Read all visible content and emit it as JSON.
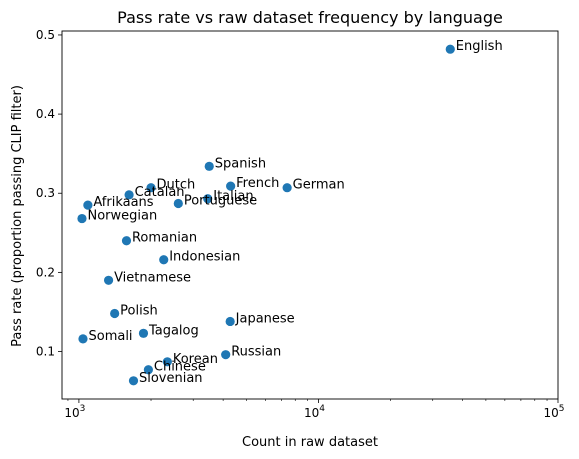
{
  "chart_data": {
    "type": "scatter",
    "title": "Pass rate vs raw dataset frequency by language",
    "xlabel": "Count in raw dataset",
    "ylabel": "Pass rate (proportion passing CLIP filter)",
    "xscale": "log",
    "xlim": [
      850,
      100000
    ],
    "ylim": [
      0.04,
      0.505
    ],
    "grid": false,
    "legend": "none",
    "point_color": "#1f77b4",
    "x_ticks": [
      {
        "value": 1000,
        "base": "10",
        "exp": "3"
      },
      {
        "value": 10000,
        "base": "10",
        "exp": "4"
      },
      {
        "value": 100000,
        "base": "10",
        "exp": "5"
      }
    ],
    "y_ticks": [
      {
        "value": 0.1,
        "label": "0.1"
      },
      {
        "value": 0.2,
        "label": "0.2"
      },
      {
        "value": 0.3,
        "label": "0.3"
      },
      {
        "value": 0.4,
        "label": "0.4"
      },
      {
        "value": 0.5,
        "label": "0.5"
      }
    ],
    "points": [
      {
        "label": "English",
        "x": 35500,
        "y": 0.482
      },
      {
        "label": "Spanish",
        "x": 3500,
        "y": 0.334
      },
      {
        "label": "French",
        "x": 4300,
        "y": 0.309
      },
      {
        "label": "German",
        "x": 7400,
        "y": 0.307
      },
      {
        "label": "Dutch",
        "x": 2000,
        "y": 0.307
      },
      {
        "label": "Catalan",
        "x": 1620,
        "y": 0.298
      },
      {
        "label": "Italian",
        "x": 3450,
        "y": 0.293
      },
      {
        "label": "Portuguese",
        "x": 2600,
        "y": 0.287
      },
      {
        "label": "Afrikaans",
        "x": 1090,
        "y": 0.285
      },
      {
        "label": "Norwegian",
        "x": 1030,
        "y": 0.268
      },
      {
        "label": "Romanian",
        "x": 1580,
        "y": 0.24
      },
      {
        "label": "Indonesian",
        "x": 2260,
        "y": 0.216
      },
      {
        "label": "Vietnamese",
        "x": 1330,
        "y": 0.19
      },
      {
        "label": "Polish",
        "x": 1410,
        "y": 0.148
      },
      {
        "label": "Japanese",
        "x": 4280,
        "y": 0.138
      },
      {
        "label": "Tagalog",
        "x": 1860,
        "y": 0.123
      },
      {
        "label": "Somali",
        "x": 1040,
        "y": 0.116
      },
      {
        "label": "Russian",
        "x": 4100,
        "y": 0.096
      },
      {
        "label": "Korean",
        "x": 2340,
        "y": 0.087
      },
      {
        "label": "Chinese",
        "x": 1950,
        "y": 0.077
      },
      {
        "label": "Slovenian",
        "x": 1690,
        "y": 0.063
      }
    ]
  }
}
